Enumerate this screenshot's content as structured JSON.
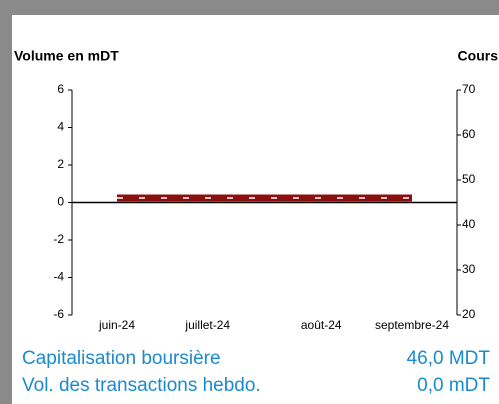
{
  "chart_data": {
    "type": "line",
    "y_label": "Volume en mDT",
    "y2_label": "Cours",
    "categories": [
      "juin-24",
      null,
      null,
      null,
      "juillet-24",
      null,
      null,
      null,
      null,
      "août-24",
      null,
      null,
      null,
      "septembre-24"
    ],
    "series": [
      {
        "name": "Cours",
        "color": "#8b0f0f",
        "axis": "y2",
        "values": [
          46,
          46,
          46,
          46,
          46,
          46,
          46,
          46,
          46,
          46,
          46,
          46,
          46,
          46
        ]
      }
    ],
    "ylim": [
      -6,
      6
    ],
    "yticks": [
      -6,
      -4,
      -2,
      0,
      2,
      4,
      6
    ],
    "y2lim": [
      20,
      70
    ],
    "y2ticks": [
      20,
      30,
      40,
      50,
      60,
      70
    ]
  },
  "summary": {
    "rows": [
      {
        "label": "Capitalisation boursière",
        "value": "46,0 MDT"
      },
      {
        "label": "Vol. des transactions hebdo.",
        "value": "0,0 mDT"
      }
    ]
  }
}
